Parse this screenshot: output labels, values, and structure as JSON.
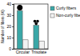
{
  "chart_data": {
    "type": "bar",
    "y_label": "Number of fibers (%)",
    "categories": [
      "Circular",
      "Trisolate"
    ],
    "series": [
      {
        "name": "Curly fibers",
        "color": "#3aa7a7",
        "values": [
          34,
          21
        ]
      },
      {
        "name": "Non-curly fibers",
        "color": "#f2f2f2",
        "values": [
          8,
          7
        ]
      }
    ],
    "ylim": [
      0,
      40
    ],
    "yticks": [
      0,
      10,
      20,
      30,
      40
    ],
    "legend": "right"
  }
}
